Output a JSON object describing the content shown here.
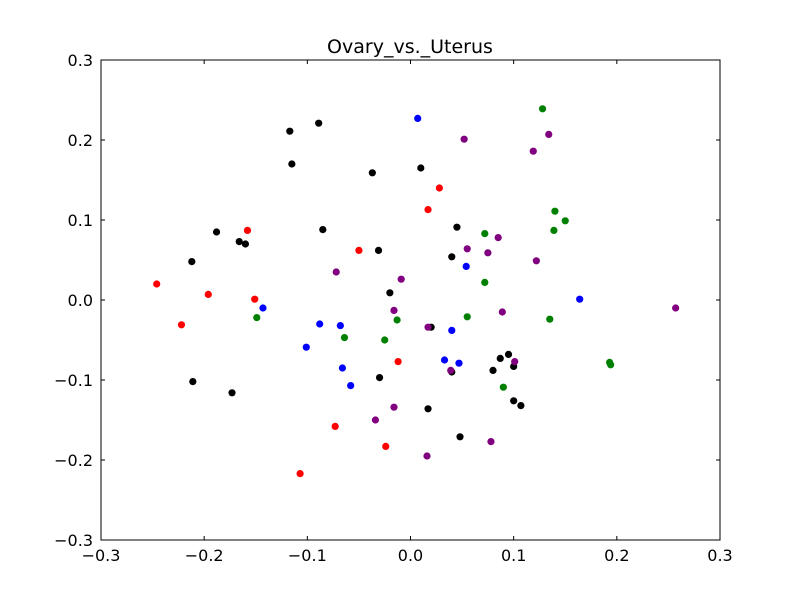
{
  "chart_data": {
    "type": "scatter",
    "title": "Ovary_vs._Uterus",
    "xlabel": "",
    "ylabel": "",
    "xlim": [
      -0.3,
      0.3
    ],
    "ylim": [
      -0.3,
      0.3
    ],
    "xticks": [
      -0.3,
      -0.2,
      -0.1,
      0.0,
      0.1,
      0.2,
      0.3
    ],
    "xtick_labels": [
      "−0.3",
      "−0.2",
      "−0.1",
      "0.0",
      "0.1",
      "0.2",
      "0.3"
    ],
    "yticks": [
      -0.3,
      -0.2,
      -0.1,
      0.0,
      0.1,
      0.2,
      0.3
    ],
    "ytick_labels": [
      "−0.3",
      "−0.2",
      "−0.1",
      "0.0",
      "0.1",
      "0.2",
      "0.3"
    ],
    "grid": false,
    "series": [
      {
        "color": "#000000",
        "points": [
          [
            -0.117,
            0.211
          ],
          [
            -0.089,
            0.221
          ],
          [
            -0.115,
            0.17
          ],
          [
            -0.037,
            0.159
          ],
          [
            0.01,
            0.165
          ],
          [
            -0.188,
            0.085
          ],
          [
            -0.166,
            0.073
          ],
          [
            -0.16,
            0.07
          ],
          [
            -0.085,
            0.088
          ],
          [
            -0.212,
            0.048
          ],
          [
            -0.031,
            0.062
          ],
          [
            0.045,
            0.091
          ],
          [
            0.04,
            0.054
          ],
          [
            -0.02,
            0.009
          ],
          [
            0.02,
            -0.034
          ],
          [
            0.095,
            -0.068
          ],
          [
            0.087,
            -0.073
          ],
          [
            0.1,
            -0.083
          ],
          [
            0.08,
            -0.088
          ],
          [
            0.04,
            -0.09
          ],
          [
            -0.211,
            -0.102
          ],
          [
            -0.173,
            -0.116
          ],
          [
            -0.03,
            -0.097
          ],
          [
            0.1,
            -0.126
          ],
          [
            0.107,
            -0.132
          ],
          [
            0.017,
            -0.136
          ],
          [
            0.048,
            -0.171
          ]
        ]
      },
      {
        "color": "#ff0000",
        "points": [
          [
            0.028,
            0.14
          ],
          [
            0.017,
            0.113
          ],
          [
            -0.158,
            0.087
          ],
          [
            -0.05,
            0.062
          ],
          [
            -0.246,
            0.02
          ],
          [
            -0.196,
            0.007
          ],
          [
            -0.151,
            0.001
          ],
          [
            -0.222,
            -0.031
          ],
          [
            -0.012,
            -0.077
          ],
          [
            -0.073,
            -0.158
          ],
          [
            -0.024,
            -0.183
          ],
          [
            -0.107,
            -0.217
          ]
        ]
      },
      {
        "color": "#0000ff",
        "points": [
          [
            0.007,
            0.227
          ],
          [
            0.054,
            0.042
          ],
          [
            0.164,
            0.001
          ],
          [
            -0.143,
            -0.01
          ],
          [
            -0.088,
            -0.03
          ],
          [
            -0.068,
            -0.032
          ],
          [
            0.04,
            -0.038
          ],
          [
            -0.101,
            -0.059
          ],
          [
            0.033,
            -0.075
          ],
          [
            0.047,
            -0.079
          ],
          [
            -0.066,
            -0.085
          ],
          [
            -0.058,
            -0.107
          ]
        ]
      },
      {
        "color": "#008000",
        "points": [
          [
            0.128,
            0.239
          ],
          [
            0.14,
            0.111
          ],
          [
            0.15,
            0.099
          ],
          [
            0.139,
            0.087
          ],
          [
            0.072,
            0.083
          ],
          [
            0.072,
            0.022
          ],
          [
            -0.149,
            -0.022
          ],
          [
            -0.013,
            -0.025
          ],
          [
            0.055,
            -0.021
          ],
          [
            0.135,
            -0.024
          ],
          [
            -0.064,
            -0.047
          ],
          [
            -0.025,
            -0.05
          ],
          [
            0.193,
            -0.078
          ],
          [
            0.194,
            -0.081
          ],
          [
            0.09,
            -0.109
          ]
        ]
      },
      {
        "color": "#800080",
        "points": [
          [
            0.052,
            0.201
          ],
          [
            0.134,
            0.207
          ],
          [
            0.119,
            0.186
          ],
          [
            0.085,
            0.078
          ],
          [
            0.055,
            0.064
          ],
          [
            0.075,
            0.059
          ],
          [
            0.122,
            0.049
          ],
          [
            -0.072,
            0.035
          ],
          [
            -0.009,
            0.026
          ],
          [
            0.257,
            -0.01
          ],
          [
            -0.016,
            -0.013
          ],
          [
            0.089,
            -0.015
          ],
          [
            0.017,
            -0.034
          ],
          [
            0.101,
            -0.077
          ],
          [
            0.039,
            -0.088
          ],
          [
            -0.034,
            -0.15
          ],
          [
            -0.016,
            -0.134
          ],
          [
            0.078,
            -0.177
          ],
          [
            0.016,
            -0.195
          ]
        ]
      }
    ]
  }
}
